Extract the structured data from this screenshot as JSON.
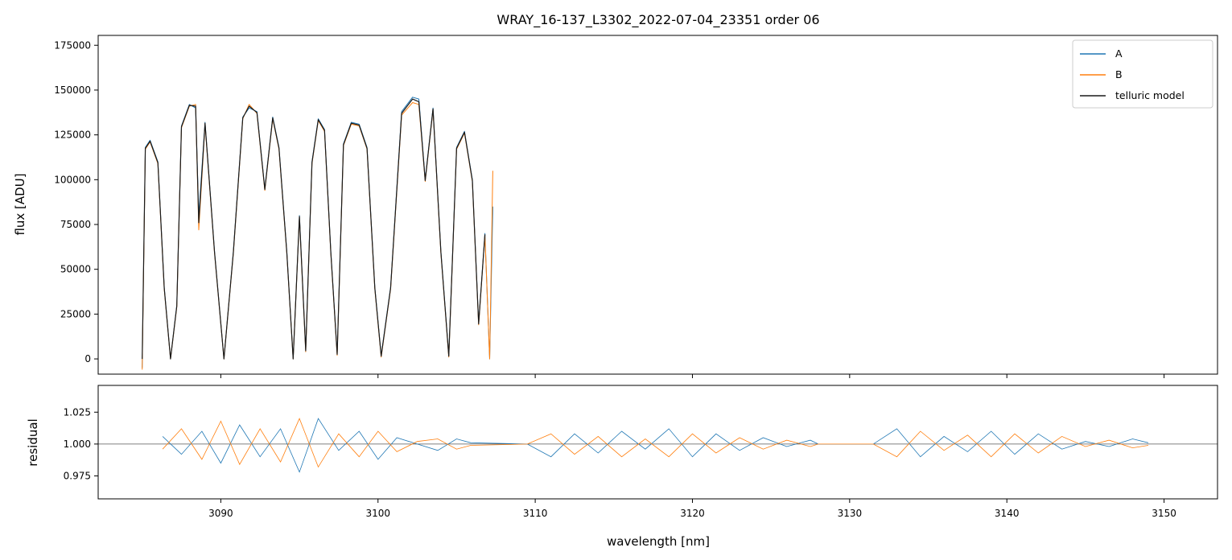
{
  "chart_data": [
    {
      "type": "line",
      "title": "WRAY_16-137_L3302_2022-07-04_23351  order 06",
      "ylabel": "flux [ADU]",
      "xlim": [
        3082.2,
        3153.4
      ],
      "ylim": [
        -8500,
        180500
      ],
      "yticks": [
        0,
        25000,
        50000,
        75000,
        100000,
        125000,
        150000,
        175000
      ],
      "ytick_labels": [
        "0",
        "25000",
        "50000",
        "75000",
        "100000",
        "125000",
        "150000",
        "175000"
      ],
      "legend": {
        "placement": "top-right",
        "entries": [
          "A",
          "B",
          "telluric model"
        ]
      },
      "colors": {
        "A": "#1f77b4",
        "B": "#ff7f0e",
        "telluric model": "#1a1a1a"
      },
      "series": [
        {
          "name": "A",
          "x": [
            3085.0,
            3085.2,
            3085.5,
            3086.0,
            3086.4,
            3086.8,
            3087.2,
            3087.5,
            3088.0,
            3088.4,
            3088.6,
            3089.0,
            3089.6,
            3090.2,
            3090.8,
            3091.4,
            3091.8,
            3092.3,
            3092.8,
            3093.3,
            3093.7,
            3094.2,
            3094.6,
            3095.0,
            3095.4,
            3095.8,
            3096.2,
            3096.6,
            3097.0,
            3097.4,
            3097.8,
            3098.3,
            3098.8,
            3099.3,
            3099.8,
            3100.2,
            3100.8,
            3101.5,
            3102.2,
            3102.6,
            3103.0,
            3103.5,
            3104.0,
            3104.5,
            3105.0,
            3105.5,
            3106.0,
            3106.4,
            3106.8,
            3107.1,
            3107.3
          ],
          "y": [
            -5000,
            118000,
            122000,
            110000,
            40000,
            0,
            30000,
            130000,
            142000,
            140000,
            80000,
            132000,
            60000,
            0,
            60000,
            135000,
            140000,
            138000,
            95000,
            135000,
            118000,
            60000,
            0,
            80000,
            5000,
            110000,
            134000,
            128000,
            60000,
            3000,
            120000,
            132000,
            131000,
            118000,
            40000,
            2000,
            40000,
            138000,
            146000,
            145000,
            100000,
            140000,
            60000,
            2000,
            118000,
            127000,
            100000,
            20000,
            70000,
            0,
            85000
          ]
        },
        {
          "name": "B",
          "x": [
            3085.0,
            3085.2,
            3085.5,
            3086.0,
            3086.4,
            3086.8,
            3087.2,
            3087.5,
            3088.0,
            3088.4,
            3088.6,
            3089.0,
            3089.6,
            3090.2,
            3090.8,
            3091.4,
            3091.8,
            3092.3,
            3092.8,
            3093.3,
            3093.7,
            3094.2,
            3094.6,
            3095.0,
            3095.4,
            3095.8,
            3096.2,
            3096.6,
            3097.0,
            3097.4,
            3097.8,
            3098.3,
            3098.8,
            3099.3,
            3099.8,
            3100.2,
            3100.8,
            3101.5,
            3102.2,
            3102.6,
            3103.0,
            3103.5,
            3104.0,
            3104.5,
            3105.0,
            3105.5,
            3106.0,
            3106.4,
            3106.8,
            3107.1,
            3107.3
          ],
          "y": [
            -6000,
            117000,
            121000,
            109000,
            39000,
            0,
            29000,
            129000,
            141000,
            142000,
            72000,
            131000,
            59000,
            0,
            59000,
            134000,
            142000,
            137000,
            94000,
            134000,
            117000,
            59000,
            0,
            79000,
            4000,
            109000,
            133000,
            127000,
            59000,
            2000,
            119000,
            131000,
            130000,
            117000,
            39000,
            1000,
            39000,
            136000,
            143000,
            142000,
            99000,
            139000,
            59000,
            1000,
            117000,
            126000,
            99000,
            19000,
            69000,
            0,
            105000
          ]
        },
        {
          "name": "telluric model",
          "x": [
            3085.0,
            3085.2,
            3085.5,
            3086.0,
            3086.4,
            3086.8,
            3087.2,
            3087.5,
            3088.0,
            3088.4,
            3088.6,
            3089.0,
            3089.6,
            3090.2,
            3090.8,
            3091.4,
            3091.8,
            3092.3,
            3092.8,
            3093.3,
            3093.7,
            3094.2,
            3094.6,
            3095.0,
            3095.4,
            3095.8,
            3096.2,
            3096.6,
            3097.0,
            3097.4,
            3097.8,
            3098.3,
            3098.8,
            3099.3,
            3099.8,
            3100.2,
            3100.8,
            3101.5,
            3102.2,
            3102.6,
            3103.0,
            3103.5,
            3104.0,
            3104.5,
            3105.0,
            3105.5,
            3106.0,
            3106.4,
            3106.8
          ],
          "y": [
            0,
            117500,
            121500,
            109500,
            39500,
            0,
            29500,
            129500,
            141500,
            141000,
            76000,
            131500,
            59500,
            0,
            59500,
            134500,
            141000,
            137500,
            94500,
            134500,
            117500,
            59500,
            0,
            79500,
            4500,
            109500,
            133500,
            127500,
            59500,
            2500,
            119500,
            131500,
            130500,
            117500,
            39500,
            1500,
            39500,
            137000,
            145000,
            143500,
            99500,
            139500,
            59500,
            1500,
            117500,
            126500,
            99500,
            19500,
            69500
          ]
        }
      ]
    },
    {
      "type": "line",
      "xlabel": "wavelength [nm]",
      "ylabel": "residual",
      "xlim": [
        3082.2,
        3153.4
      ],
      "ylim": [
        0.957,
        1.046
      ],
      "yticks": [
        0.975,
        1.0,
        1.025
      ],
      "ytick_labels": [
        "0.975",
        "1.000",
        "1.025"
      ],
      "xticks": [
        3090,
        3100,
        3110,
        3120,
        3130,
        3140,
        3150
      ],
      "xtick_labels": [
        "3090",
        "3100",
        "3110",
        "3120",
        "3130",
        "3140",
        "3150"
      ],
      "reference_line": 1.0,
      "colors": {
        "A": "#1f77b4",
        "B": "#ff7f0e",
        "reference": "#555555"
      },
      "series": [
        {
          "name": "A",
          "x": [
            3086.3,
            3087.5,
            3088.8,
            3090.0,
            3091.2,
            3092.5,
            3093.8,
            3095.0,
            3096.2,
            3097.5,
            3098.8,
            3100.0,
            3101.2,
            3102.5,
            3103.8,
            3105.0,
            3105.9,
            3109.5,
            3111.0,
            3112.5,
            3114.0,
            3115.5,
            3117.0,
            3118.5,
            3120.0,
            3121.5,
            3123.0,
            3124.5,
            3126.0,
            3127.5,
            3128.0,
            3131.5,
            3133.0,
            3134.5,
            3136.0,
            3137.5,
            3139.0,
            3140.5,
            3142.0,
            3143.5,
            3145.0,
            3146.5,
            3148.0,
            3149.0
          ],
          "y": [
            1.006,
            0.992,
            1.01,
            0.985,
            1.015,
            0.99,
            1.012,
            0.978,
            1.02,
            0.995,
            1.01,
            0.988,
            1.005,
            1.0,
            0.995,
            1.004,
            1.001,
            1.0,
            0.99,
            1.008,
            0.993,
            1.01,
            0.996,
            1.012,
            0.99,
            1.008,
            0.995,
            1.005,
            0.998,
            1.003,
            1.0,
            1.0,
            1.012,
            0.99,
            1.006,
            0.994,
            1.01,
            0.992,
            1.008,
            0.996,
            1.002,
            0.998,
            1.004,
            1.001
          ]
        },
        {
          "name": "B",
          "x": [
            3086.3,
            3087.5,
            3088.8,
            3090.0,
            3091.2,
            3092.5,
            3093.8,
            3095.0,
            3096.2,
            3097.5,
            3098.8,
            3100.0,
            3101.2,
            3102.5,
            3103.8,
            3105.0,
            3105.9,
            3109.5,
            3111.0,
            3112.5,
            3114.0,
            3115.5,
            3117.0,
            3118.5,
            3120.0,
            3121.5,
            3123.0,
            3124.5,
            3126.0,
            3127.5,
            3128.0,
            3131.5,
            3133.0,
            3134.5,
            3136.0,
            3137.5,
            3139.0,
            3140.5,
            3142.0,
            3143.5,
            3145.0,
            3146.5,
            3148.0,
            3149.0
          ],
          "y": [
            0.996,
            1.012,
            0.988,
            1.018,
            0.984,
            1.012,
            0.986,
            1.02,
            0.982,
            1.008,
            0.99,
            1.01,
            0.994,
            1.002,
            1.004,
            0.996,
            0.999,
            1.0,
            1.008,
            0.992,
            1.006,
            0.99,
            1.004,
            0.99,
            1.008,
            0.993,
            1.005,
            0.996,
            1.003,
            0.998,
            1.0,
            1.0,
            0.99,
            1.01,
            0.995,
            1.007,
            0.99,
            1.008,
            0.993,
            1.006,
            0.998,
            1.003,
            0.997,
            0.999
          ]
        }
      ]
    }
  ]
}
